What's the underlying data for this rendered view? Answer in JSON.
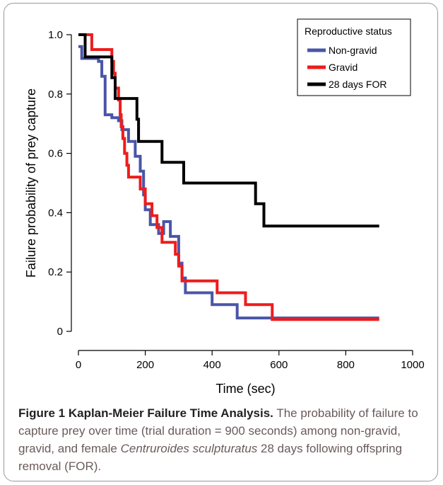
{
  "chart_data": {
    "type": "line",
    "step": true,
    "xlabel": "Time (sec)",
    "ylabel": "Failure probability of prey capture",
    "xlim": [
      0,
      1000
    ],
    "ylim": [
      0,
      1.0
    ],
    "x_ticks": [
      "0",
      "200",
      "400",
      "600",
      "800",
      "1000"
    ],
    "y_ticks": [
      "0",
      "0.2",
      "0.4",
      "0.6",
      "0.8",
      "1.0"
    ],
    "grid": false,
    "legend": {
      "title": "Reproductive status",
      "position": "top-right"
    },
    "series": [
      {
        "name": "Non-gravid",
        "color": "#4a55a8",
        "points": [
          [
            0,
            0.96
          ],
          [
            10,
            0.96
          ],
          [
            10,
            0.92
          ],
          [
            60,
            0.92
          ],
          [
            60,
            0.91
          ],
          [
            70,
            0.91
          ],
          [
            70,
            0.86
          ],
          [
            80,
            0.86
          ],
          [
            80,
            0.73
          ],
          [
            100,
            0.73
          ],
          [
            100,
            0.72
          ],
          [
            120,
            0.72
          ],
          [
            120,
            0.71
          ],
          [
            130,
            0.71
          ],
          [
            130,
            0.68
          ],
          [
            150,
            0.68
          ],
          [
            150,
            0.64
          ],
          [
            170,
            0.64
          ],
          [
            170,
            0.59
          ],
          [
            185,
            0.59
          ],
          [
            185,
            0.54
          ],
          [
            195,
            0.54
          ],
          [
            195,
            0.46
          ],
          [
            200,
            0.46
          ],
          [
            200,
            0.41
          ],
          [
            215,
            0.41
          ],
          [
            215,
            0.36
          ],
          [
            240,
            0.36
          ],
          [
            240,
            0.33
          ],
          [
            255,
            0.33
          ],
          [
            255,
            0.37
          ],
          [
            275,
            0.37
          ],
          [
            275,
            0.32
          ],
          [
            300,
            0.32
          ],
          [
            300,
            0.23
          ],
          [
            310,
            0.23
          ],
          [
            310,
            0.18
          ],
          [
            320,
            0.18
          ],
          [
            320,
            0.13
          ],
          [
            400,
            0.13
          ],
          [
            400,
            0.09
          ],
          [
            475,
            0.09
          ],
          [
            475,
            0.045
          ],
          [
            900,
            0.045
          ]
        ]
      },
      {
        "name": "Gravid",
        "color": "#ee1c1c",
        "points": [
          [
            0,
            1.0
          ],
          [
            40,
            1.0
          ],
          [
            40,
            0.95
          ],
          [
            100,
            0.95
          ],
          [
            100,
            0.91
          ],
          [
            105,
            0.91
          ],
          [
            105,
            0.87
          ],
          [
            110,
            0.87
          ],
          [
            110,
            0.82
          ],
          [
            120,
            0.82
          ],
          [
            120,
            0.78
          ],
          [
            125,
            0.78
          ],
          [
            125,
            0.73
          ],
          [
            128,
            0.73
          ],
          [
            128,
            0.69
          ],
          [
            133,
            0.69
          ],
          [
            133,
            0.65
          ],
          [
            138,
            0.65
          ],
          [
            138,
            0.6
          ],
          [
            145,
            0.6
          ],
          [
            145,
            0.56
          ],
          [
            150,
            0.56
          ],
          [
            150,
            0.52
          ],
          [
            185,
            0.52
          ],
          [
            185,
            0.48
          ],
          [
            200,
            0.48
          ],
          [
            200,
            0.43
          ],
          [
            220,
            0.43
          ],
          [
            220,
            0.39
          ],
          [
            235,
            0.39
          ],
          [
            235,
            0.35
          ],
          [
            250,
            0.35
          ],
          [
            250,
            0.3
          ],
          [
            290,
            0.3
          ],
          [
            290,
            0.26
          ],
          [
            300,
            0.26
          ],
          [
            300,
            0.22
          ],
          [
            310,
            0.22
          ],
          [
            310,
            0.17
          ],
          [
            340,
            0.17
          ],
          [
            340,
            0.17
          ],
          [
            415,
            0.17
          ],
          [
            415,
            0.13
          ],
          [
            500,
            0.13
          ],
          [
            500,
            0.09
          ],
          [
            580,
            0.09
          ],
          [
            580,
            0.04
          ],
          [
            900,
            0.04
          ]
        ]
      },
      {
        "name": "28 days FOR",
        "color": "#000000",
        "points": [
          [
            0,
            1.0
          ],
          [
            20,
            1.0
          ],
          [
            20,
            0.925
          ],
          [
            80,
            0.925
          ],
          [
            80,
            0.925
          ],
          [
            100,
            0.925
          ],
          [
            100,
            0.855
          ],
          [
            110,
            0.855
          ],
          [
            110,
            0.785
          ],
          [
            175,
            0.785
          ],
          [
            175,
            0.715
          ],
          [
            180,
            0.715
          ],
          [
            180,
            0.64
          ],
          [
            250,
            0.64
          ],
          [
            250,
            0.57
          ],
          [
            315,
            0.57
          ],
          [
            315,
            0.5
          ],
          [
            530,
            0.5
          ],
          [
            530,
            0.43
          ],
          [
            555,
            0.43
          ],
          [
            555,
            0.355
          ],
          [
            900,
            0.355
          ]
        ]
      }
    ]
  },
  "caption": {
    "title": "Figure 1 Kaplan-Meier Failure Time Analysis.",
    "part1": " The probability of failure to capture prey over time (trial duration = 900 seconds) among non-gravid, gravid, and female ",
    "species": "Centruroides sculpturatus",
    "part2": " 28 days following offspring removal (FOR)."
  }
}
